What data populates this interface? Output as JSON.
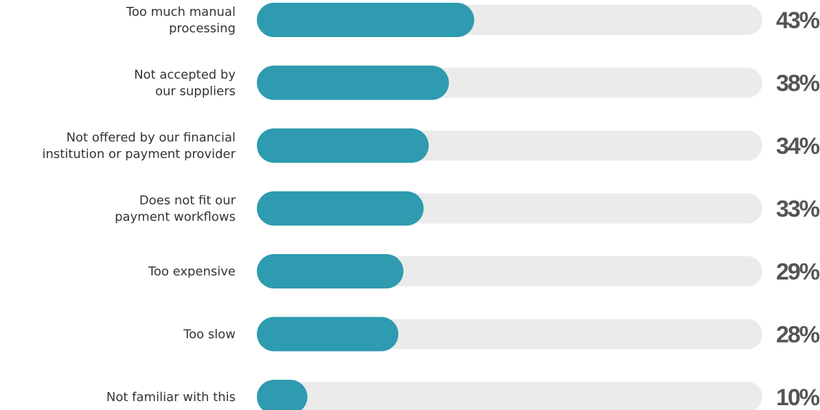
{
  "chart_data": {
    "type": "bar",
    "orientation": "horizontal",
    "categories": [
      [
        "Too much manual",
        "processing"
      ],
      [
        "Not accepted by",
        "our suppliers"
      ],
      [
        "Not offered by our financial",
        "institution or payment provider"
      ],
      [
        "Does not fit our",
        "payment workflows"
      ],
      [
        "Too expensive"
      ],
      [
        "Too slow"
      ],
      [
        "Not familiar with this"
      ]
    ],
    "values": [
      43,
      38,
      34,
      33,
      29,
      28,
      10
    ],
    "value_labels": [
      "43%",
      "38%",
      "34%",
      "33%",
      "29%",
      "28%",
      "10%"
    ],
    "color": "#2e9bb0",
    "track_color": "#ebebeb",
    "xlim": [
      0,
      100
    ]
  }
}
